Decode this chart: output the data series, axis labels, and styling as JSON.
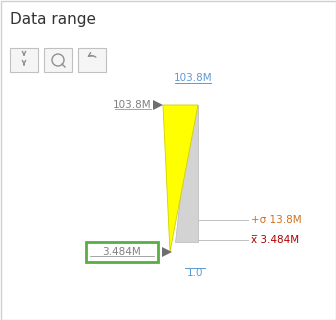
{
  "title": "Data range",
  "panel_bg": "#ffffff",
  "upper_handle_label": "103.8M",
  "lower_handle_label": "3.484M",
  "top_axis_label": "103.8M",
  "bottom_axis_label": "1.0",
  "sigma_label": "+σ 13.8M",
  "mean_label": "x̅ 3.484M",
  "histogram_yellow": "#ffff00",
  "histogram_gray": "#d3d3d3",
  "handle_arrow_color": "#6e6e6e",
  "handle_box_border": "#5aac44",
  "annotation_color": "#808080",
  "axis_label_color": "#5b9bd5",
  "sigma_color": "#d07020",
  "mean_color": "#b00000",
  "icon_color": "#909090",
  "border_color": "#d0d0d0",
  "btn_bg": "#f5f5f5",
  "btn_border": "#c0c0c0"
}
